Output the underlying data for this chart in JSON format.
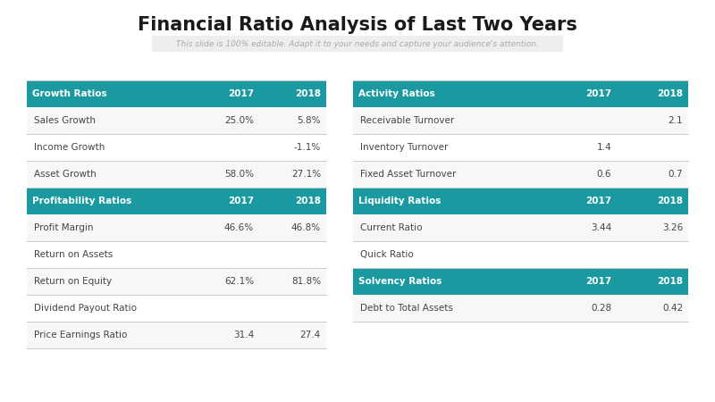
{
  "title": "Financial Ratio Analysis of Last Two Years",
  "subtitle": "This slide is 100% editable. Adapt it to your needs and capture your audience's attention.",
  "header_color": "#1a9aa0",
  "header_text_color": "#ffffff",
  "border_color": "#cccccc",
  "text_color": "#444444",
  "bg_white": "#ffffff",
  "bg_gray": "#f5f5f5",
  "subtitle_bg": "#eeeeee",
  "left_table": {
    "headers": [
      "Growth Ratios",
      "2017",
      "2018"
    ],
    "rows": [
      [
        "Sales Growth",
        "25.0%",
        "5.8%"
      ],
      [
        "Income Growth",
        "",
        "-1.1%"
      ],
      [
        "Asset Growth",
        "58.0%",
        "27.1%"
      ]
    ],
    "section2_header": [
      "Profitability Ratios",
      "2017",
      "2018"
    ],
    "section2_rows": [
      [
        "Profit Margin",
        "46.6%",
        "46.8%"
      ],
      [
        "Return on Assets",
        "",
        ""
      ],
      [
        "Return on Equity",
        "62.1%",
        "81.8%"
      ],
      [
        "Dividend Payout Ratio",
        "",
        ""
      ],
      [
        "Price Earnings Ratio",
        "31.4",
        "27.4"
      ]
    ]
  },
  "right_table": {
    "headers": [
      "Activity Ratios",
      "2017",
      "2018"
    ],
    "rows": [
      [
        "Receivable Turnover",
        "",
        "2.1"
      ],
      [
        "Inventory Turnover",
        "1.4",
        ""
      ],
      [
        "Fixed Asset Turnover",
        "0.6",
        "0.7"
      ]
    ],
    "section2_header": [
      "Liquidity Ratios",
      "2017",
      "2018"
    ],
    "section2_rows": [
      [
        "Current Ratio",
        "3.44",
        "3.26"
      ],
      [
        "Quick Ratio",
        "",
        ""
      ]
    ],
    "section3_header": [
      "Solvency Ratios",
      "2017",
      "2018"
    ],
    "section3_rows": [
      [
        "Debt to Total Assets",
        "0.28",
        "0.42"
      ]
    ]
  }
}
